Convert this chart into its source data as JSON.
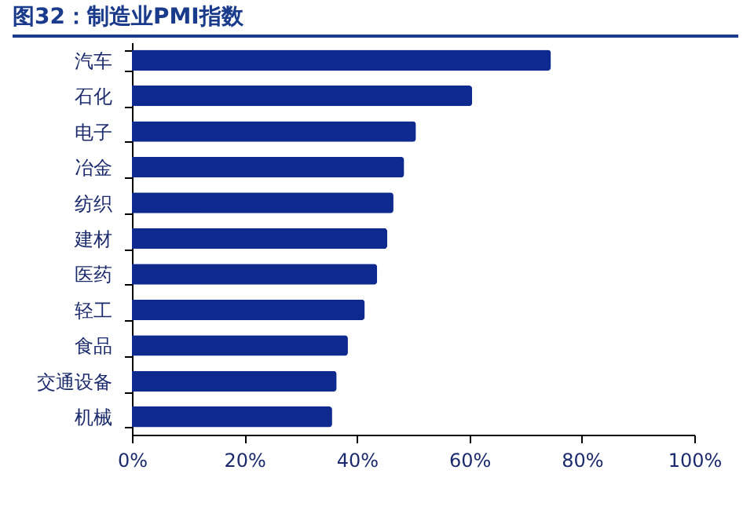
{
  "chart_data": {
    "type": "bar",
    "orientation": "horizontal",
    "title": "图32：制造业PMI指数",
    "categories": [
      "汽车",
      "石化",
      "电子",
      "冶金",
      "纺织",
      "建材",
      "医药",
      "轻工",
      "食品",
      "交通设备",
      "机械"
    ],
    "values": [
      74.5,
      60.5,
      50.5,
      48.4,
      46.5,
      45.4,
      43.6,
      41.4,
      38.4,
      36.4,
      35.6
    ],
    "color": "#0f2a8f",
    "xlim": [
      0,
      100
    ],
    "xticks": [
      {
        "value": 0,
        "label": "0%"
      },
      {
        "value": 20,
        "label": "20%"
      },
      {
        "value": 40,
        "label": "40%"
      },
      {
        "value": 60,
        "label": "60%"
      },
      {
        "value": 80,
        "label": "80%"
      },
      {
        "value": 100,
        "label": "100%"
      }
    ],
    "grid": false
  }
}
